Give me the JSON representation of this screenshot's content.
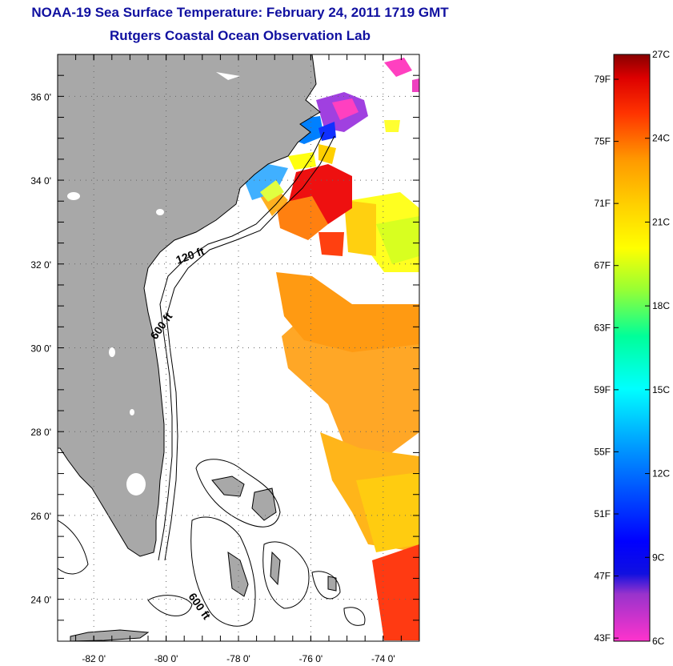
{
  "title": {
    "line1": "NOAA-19 Sea Surface Temperature:  February 24, 2011 1719 GMT",
    "line2": "Rutgers Coastal Ocean Observation Lab"
  },
  "map": {
    "lon_range": [
      -83,
      -73
    ],
    "lat_range": [
      23,
      37
    ],
    "lon_ticks": [
      {
        "value": -82,
        "label": "-82 0'"
      },
      {
        "value": -80,
        "label": "-80 0'"
      },
      {
        "value": -78,
        "label": "-78 0'"
      },
      {
        "value": -76,
        "label": "-76 0'"
      },
      {
        "value": -74,
        "label": "-74 0'"
      }
    ],
    "lat_ticks": [
      {
        "value": 36,
        "label": "36 0'"
      },
      {
        "value": 34,
        "label": "34 0'"
      },
      {
        "value": 32,
        "label": "32 0'"
      },
      {
        "value": 30,
        "label": "30 0'"
      },
      {
        "value": 28,
        "label": "28 0'"
      },
      {
        "value": 26,
        "label": "26 0'"
      },
      {
        "value": 24,
        "label": "24 0'"
      }
    ],
    "grid": "dotted",
    "land_color": "#a8a8a8",
    "contour_labels": [
      "120 ft",
      "600 ft",
      "600 ft"
    ]
  },
  "colorbar": {
    "celsius_labels": [
      {
        "label": "27C",
        "value": 27
      },
      {
        "label": "24C",
        "value": 24
      },
      {
        "label": "21C",
        "value": 21
      },
      {
        "label": "18C",
        "value": 18
      },
      {
        "label": "15C",
        "value": 15
      },
      {
        "label": "12C",
        "value": 12
      },
      {
        "label": "9C",
        "value": 9
      },
      {
        "label": "6C",
        "value": 6
      }
    ],
    "fahrenheit_labels": [
      {
        "label": "79F",
        "value": 79
      },
      {
        "label": "75F",
        "value": 75
      },
      {
        "label": "71F",
        "value": 71
      },
      {
        "label": "67F",
        "value": 67
      },
      {
        "label": "63F",
        "value": 63
      },
      {
        "label": "59F",
        "value": 59
      },
      {
        "label": "55F",
        "value": 55
      },
      {
        "label": "51F",
        "value": 51
      },
      {
        "label": "47F",
        "value": 47
      },
      {
        "label": "43F",
        "value": 43
      }
    ]
  }
}
